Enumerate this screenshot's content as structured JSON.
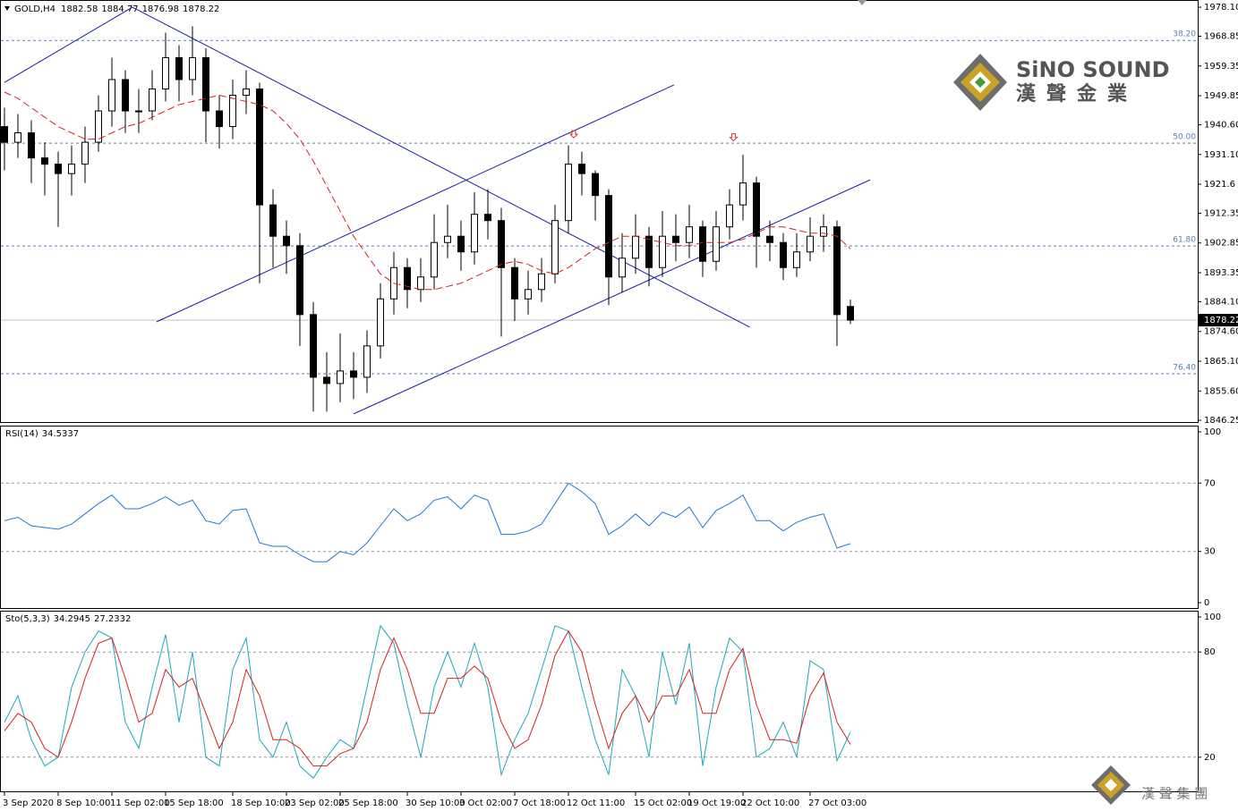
{
  "chart_data": [
    {
      "type": "candlestick",
      "title": "GOLD,H4",
      "categories": [
        "3 Sep 2020",
        null,
        null,
        null,
        "8 Sep 10:00",
        null,
        null,
        null,
        "11 Sep 02:00",
        null,
        null,
        null,
        "15 Sep 18:00",
        null,
        null,
        null,
        null,
        "18 Sep 10:00",
        null,
        null,
        null,
        "23 Sep 02:00",
        null,
        null,
        null,
        "25 Sep 18:00",
        null,
        null,
        null,
        null,
        "30 Sep 10:00",
        null,
        null,
        null,
        "3 Oct 02:00",
        null,
        null,
        null,
        "7 Oct 18:00",
        null,
        null,
        null,
        "12 Oct 11:00",
        null,
        null,
        null,
        null,
        "15 Oct 02:00",
        null,
        null,
        null,
        "19 Oct 19:00",
        null,
        null,
        null,
        "22 Oct 10:00",
        null,
        null,
        null,
        null,
        "27 Oct 03:00",
        null,
        null,
        null
      ],
      "open": [
        1940,
        1935,
        1938,
        1930,
        1928,
        1925,
        1928,
        1935,
        1945,
        1955,
        1945,
        1945,
        1952,
        1962,
        1955,
        1962,
        1945,
        1940,
        1950,
        1952,
        1915,
        1905,
        1902,
        1880,
        1860,
        1858,
        1862,
        1860,
        1870,
        1885,
        1895,
        1888,
        1892,
        1903,
        1905,
        1900,
        1912,
        1910,
        1895,
        1885,
        1888,
        1893,
        1910,
        1928,
        1925,
        1918,
        1892,
        1898,
        1905,
        1895,
        1905,
        1903,
        1908,
        1897,
        1908,
        1915,
        1922,
        1905,
        1903,
        1895,
        1900,
        1905,
        1908,
        1882.58
      ],
      "high": [
        1946,
        1944,
        1942,
        1935,
        1932,
        1934,
        1940,
        1950,
        1962,
        1958,
        1952,
        1958,
        1970,
        1966,
        1972,
        1965,
        1950,
        1955,
        1958,
        1954,
        1920,
        1910,
        1906,
        1884,
        1868,
        1874,
        1868,
        1875,
        1890,
        1900,
        1898,
        1898,
        1912,
        1915,
        1910,
        1919,
        1920,
        1914,
        1898,
        1894,
        1898,
        1915,
        1934,
        1932,
        1926,
        1920,
        1906,
        1912,
        1908,
        1913,
        1912,
        1915,
        1910,
        1913,
        1920,
        1931,
        1924,
        1910,
        1906,
        1906,
        1911,
        1912,
        1910,
        1884.77
      ],
      "low": [
        1926,
        1930,
        1922,
        1918,
        1908,
        1918,
        1922,
        1932,
        1940,
        1938,
        1938,
        1942,
        1948,
        1948,
        1950,
        1935,
        1933,
        1936,
        1944,
        1890,
        1895,
        1893,
        1870,
        1849,
        1849,
        1852,
        1853,
        1855,
        1866,
        1880,
        1882,
        1884,
        1888,
        1898,
        1894,
        1896,
        1904,
        1873,
        1878,
        1880,
        1884,
        1890,
        1906,
        1918,
        1910,
        1883,
        1887,
        1893,
        1889,
        1892,
        1897,
        1898,
        1892,
        1894,
        1904,
        1910,
        1895,
        1897,
        1891,
        1892,
        1897,
        1900,
        1870,
        1876.98
      ],
      "close": [
        1935,
        1938,
        1930,
        1928,
        1925,
        1928,
        1935,
        1945,
        1955,
        1945,
        1945,
        1952,
        1962,
        1955,
        1962,
        1945,
        1940,
        1950,
        1952,
        1915,
        1905,
        1902,
        1880,
        1860,
        1858,
        1862,
        1860,
        1870,
        1885,
        1895,
        1888,
        1892,
        1903,
        1905,
        1900,
        1912,
        1910,
        1895,
        1885,
        1888,
        1893,
        1910,
        1928,
        1925,
        1918,
        1892,
        1898,
        1905,
        1895,
        1905,
        1903,
        1908,
        1897,
        1908,
        1915,
        1922,
        1905,
        1903,
        1895,
        1900,
        1905,
        1908,
        1880,
        1878.22
      ],
      "ma": {
        "color": "#d42020",
        "values": [
          1951,
          1949,
          1946,
          1943,
          1940,
          1938,
          1936,
          1936,
          1938,
          1940,
          1941,
          1943,
          1945,
          1947,
          1948,
          1949,
          1950,
          1949,
          1948,
          1947,
          1945,
          1941,
          1936,
          1929,
          1921,
          1913,
          1905,
          1899,
          1893,
          1890,
          1889,
          1888,
          1888,
          1889,
          1890,
          1892,
          1894,
          1896,
          1897,
          1896,
          1894,
          1893,
          1895,
          1898,
          1901,
          1903,
          1905,
          1905,
          1904,
          1903,
          1902,
          1902,
          1903,
          1903,
          1903,
          1904,
          1906,
          1908,
          1908,
          1907,
          1906,
          1906,
          1905,
          1901
        ]
      },
      "trendlines": {
        "color": "#1c1ca8",
        "lines": [
          [
            [
              0,
              1954.1
            ],
            [
              9.53,
              1978.1
            ]
          ],
          [
            [
              9.53,
              1978.1
            ],
            [
              55.5,
              1876.0
            ]
          ],
          [
            [
              11.33,
              1877.7
            ],
            [
              49.87,
              1953.3
            ]
          ],
          [
            [
              26,
              1848.3
            ],
            [
              64.47,
              1923.0
            ]
          ]
        ]
      },
      "arrows": {
        "color": "#e03030",
        "points": [
          [
            42.4,
            1937
          ],
          [
            54.3,
            1936
          ]
        ]
      },
      "levels": {
        "color": "#5a7fb0",
        "lines": [
          {
            "price": 1967.5,
            "label": "38.20"
          },
          {
            "price": 1934.7,
            "label": "50.00"
          },
          {
            "price": 1901.9,
            "label": "61.80"
          },
          {
            "price": 1861.1,
            "label": "76.40"
          }
        ]
      },
      "ylim": [
        1845.7,
        1980.4
      ],
      "yticks": [
        {
          "value": 1978.1,
          "label": "1978.10"
        },
        1968.85,
        1959.35,
        1949.85,
        {
          "value": 1940.6,
          "label": "1940.60"
        },
        {
          "value": 1931.1,
          "label": "1931.10"
        },
        1921.6,
        1912.35,
        1902.85,
        1893.35,
        {
          "value": 1884.1,
          "label": "1884.10"
        },
        {
          "value": 1874.6,
          "label": "1874.60"
        },
        {
          "value": 1865.1,
          "label": "1865.10"
        },
        {
          "value": 1855.6,
          "label": "1855.60"
        },
        1846.25
      ]
    },
    {
      "type": "line",
      "title": "RSI(14)",
      "color": "#1f78d4",
      "values": [
        48,
        50,
        45,
        44,
        43,
        46,
        52,
        58,
        63,
        55,
        55,
        58,
        62,
        57,
        60,
        48,
        46,
        54,
        55,
        35,
        33,
        33,
        28,
        24,
        24,
        30,
        28,
        35,
        45,
        55,
        48,
        52,
        60,
        62,
        55,
        63,
        60,
        40,
        40,
        42,
        46,
        58,
        70,
        65,
        58,
        40,
        45,
        52,
        45,
        53,
        50,
        56,
        44,
        54,
        58,
        63,
        48,
        48,
        42,
        47,
        50,
        52,
        32,
        34.5337
      ],
      "ylim": [
        0,
        100
      ],
      "yticks": [
        100,
        70,
        30,
        0
      ],
      "grid_at": [
        70,
        30
      ]
    },
    {
      "type": "line",
      "title": "Sto(5,3,3)",
      "series": [
        {
          "color": "#1ba9b9",
          "values": [
            40,
            55,
            30,
            15,
            20,
            60,
            80,
            92,
            88,
            40,
            25,
            60,
            90,
            40,
            80,
            20,
            15,
            70,
            88,
            30,
            20,
            40,
            15,
            8,
            20,
            30,
            25,
            60,
            95,
            85,
            50,
            20,
            60,
            80,
            60,
            85,
            60,
            10,
            30,
            45,
            70,
            95,
            92,
            60,
            30,
            10,
            70,
            55,
            20,
            80,
            50,
            85,
            15,
            60,
            88,
            80,
            20,
            25,
            40,
            20,
            75,
            70,
            18,
            34.2945
          ]
        },
        {
          "color": "#d42020",
          "values": [
            35,
            45,
            40,
            25,
            20,
            40,
            65,
            85,
            88,
            65,
            40,
            45,
            70,
            60,
            65,
            45,
            25,
            40,
            70,
            55,
            30,
            30,
            25,
            15,
            15,
            22,
            25,
            40,
            70,
            88,
            70,
            45,
            45,
            65,
            65,
            72,
            65,
            40,
            25,
            30,
            50,
            78,
            92,
            80,
            50,
            25,
            45,
            55,
            40,
            55,
            55,
            70,
            45,
            45,
            70,
            82,
            50,
            30,
            30,
            28,
            55,
            68,
            40,
            27.2332
          ]
        }
      ],
      "ylim": [
        0,
        100
      ],
      "yticks": [
        100,
        80,
        20
      ],
      "grid_at": [
        80,
        20
      ]
    }
  ],
  "logo": {
    "name": "SiNO SOUND",
    "chinese": "漢聲金業"
  },
  "watermark": "漢 聲 集 團"
}
